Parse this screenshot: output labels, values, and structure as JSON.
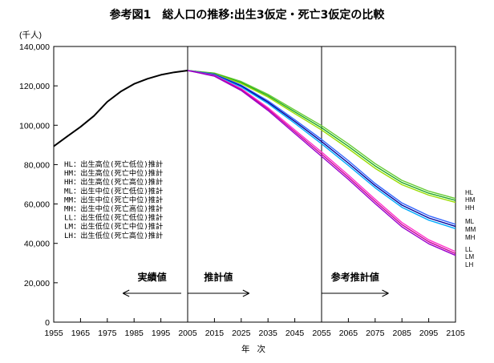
{
  "chart_data": {
    "type": "line",
    "title": "参考図1　総人口の推移:出生3仮定・死亡3仮定の比較",
    "ylabel": "(千人)",
    "xlabel": "年 次",
    "ylim": [
      0,
      140000
    ],
    "xlim": [
      1955,
      2105
    ],
    "x_ticks": [
      1955,
      1965,
      1975,
      1985,
      1995,
      2005,
      2015,
      2025,
      2035,
      2045,
      2055,
      2065,
      2075,
      2085,
      2095,
      2105
    ],
    "y_ticks": [
      0,
      20000,
      40000,
      60000,
      80000,
      100000,
      120000,
      140000
    ],
    "y_tick_labels": [
      "0",
      "20,000",
      "40,000",
      "60,000",
      "80,000",
      "100,000",
      "120,000",
      "140,000"
    ],
    "grid": false,
    "vertical_lines": [
      2005,
      2055
    ],
    "period_labels": [
      {
        "text": "実績値",
        "from": 1985,
        "to": 2005
      },
      {
        "text": "推計値",
        "from": 2005,
        "to": 2028
      },
      {
        "text": "参考推計値",
        "from": 2055,
        "to": 2080
      }
    ],
    "legend": [
      "HL：出生高位(死亡低位)推計",
      "HM：出生高位(死亡中位)推計",
      "HH：出生高位(死亡高位)推計",
      "ML：出生中位(死亡低位)推計",
      "MM：出生中位(死亡中位)推計",
      "MH：出生中位(死亡高位)推計",
      "LL：出生低位(死亡低位)推計",
      "LM：出生低位(死亡中位)推計",
      "LH：出生低位(死亡高位)推計"
    ],
    "actual": {
      "x": [
        1955,
        1960,
        1965,
        1970,
        1975,
        1980,
        1985,
        1990,
        1995,
        2000,
        2005
      ],
      "y": [
        89300,
        94300,
        99200,
        104700,
        111900,
        117100,
        121000,
        123600,
        125600,
        126900,
        127800
      ]
    },
    "x": [
      2005,
      2015,
      2025,
      2035,
      2045,
      2055,
      2065,
      2075,
      2085,
      2095,
      2105
    ],
    "series": [
      {
        "name": "HL",
        "color": "#66cc33",
        "values": [
          127800,
          126500,
          122200,
          115700,
          107700,
          99800,
          90500,
          80500,
          72000,
          66500,
          62800
        ]
      },
      {
        "name": "HM",
        "color": "#22aa22",
        "values": [
          127800,
          126300,
          121700,
          115000,
          106800,
          98700,
          89300,
          79300,
          70900,
          65500,
          61800
        ]
      },
      {
        "name": "HH",
        "color": "#99dd00",
        "values": [
          127800,
          126100,
          121200,
          114300,
          105900,
          97600,
          88100,
          78100,
          69800,
          64500,
          60800
        ]
      },
      {
        "name": "ML",
        "color": "#3366ff",
        "values": [
          127800,
          125900,
          120400,
          112400,
          102800,
          92800,
          82000,
          70400,
          60500,
          54000,
          49700
        ]
      },
      {
        "name": "MM",
        "color": "#000099",
        "values": [
          127800,
          125700,
          119900,
          111700,
          101900,
          91700,
          80800,
          69300,
          59400,
          52900,
          48600
        ]
      },
      {
        "name": "MH",
        "color": "#00aaff",
        "values": [
          127800,
          125500,
          119400,
          111000,
          101000,
          90600,
          79600,
          68200,
          58300,
          51800,
          47500
        ]
      },
      {
        "name": "LL",
        "color": "#ff33cc",
        "values": [
          127800,
          125300,
          118600,
          108900,
          97600,
          86400,
          74700,
          62400,
          50600,
          41800,
          35800
        ]
      },
      {
        "name": "LM",
        "color": "#cc0099",
        "values": [
          127800,
          125100,
          118100,
          108200,
          96700,
          85300,
          73600,
          61300,
          49500,
          40800,
          34800
        ]
      },
      {
        "name": "LH",
        "color": "#9900cc",
        "values": [
          127800,
          124900,
          117600,
          107500,
          95800,
          84200,
          72500,
          60200,
          48400,
          39800,
          33900
        ]
      }
    ]
  }
}
